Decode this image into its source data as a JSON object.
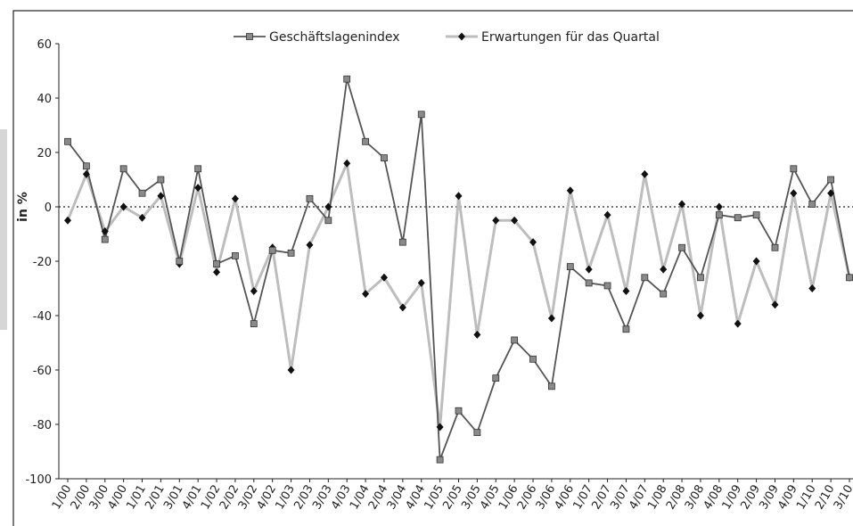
{
  "chart_data": {
    "type": "line",
    "y_label": "in %",
    "categories": [
      "1/00",
      "2/00",
      "3/00",
      "4/00",
      "1/01",
      "2/01",
      "3/01",
      "4/01",
      "1/02",
      "2/02",
      "3/02",
      "4/02",
      "1/03",
      "2/03",
      "3/03",
      "4/03",
      "1/04",
      "2/04",
      "3/04",
      "4/04",
      "1/05",
      "2/05",
      "3/05",
      "4/05",
      "1/06",
      "2/06",
      "3/06",
      "4/06",
      "1/07",
      "2/07",
      "3/07",
      "4/07",
      "1/08",
      "2/08",
      "3/08",
      "4/08",
      "1/09",
      "2/09",
      "3/09",
      "4/09",
      "1/10",
      "2/10",
      "3/10"
    ],
    "series": [
      {
        "name": "Geschäftslagenindex",
        "color": "#555555",
        "marker": "square",
        "marker_color": "#8a8a8a",
        "values": [
          24,
          15,
          -12,
          14,
          5,
          10,
          -20,
          14,
          -21,
          -18,
          -43,
          -16,
          -17,
          3,
          -5,
          47,
          24,
          18,
          -13,
          34,
          -93,
          -75,
          -83,
          -63,
          -49,
          -56,
          -66,
          -22,
          -28,
          -29,
          -45,
          -26,
          -32,
          -15,
          -26,
          -3,
          -4,
          -3,
          -15,
          14,
          1,
          10,
          -26
        ]
      },
      {
        "name": "Erwartungen für das Quartal",
        "color": "#bdbdbd",
        "marker": "diamond",
        "marker_color": "#111111",
        "values": [
          -5,
          12,
          -9,
          0,
          -4,
          4,
          -21,
          7,
          -24,
          3,
          -31,
          -15,
          -60,
          -14,
          0,
          16,
          -32,
          -26,
          -37,
          -28,
          -81,
          4,
          -47,
          -5,
          -5,
          -13,
          -41,
          6,
          -23,
          -3,
          -31,
          12,
          -23,
          1,
          -40,
          0,
          -43,
          -20,
          -36,
          5,
          -30,
          5,
          -26
        ]
      }
    ],
    "ylim": [
      -100,
      60
    ],
    "yticks": [
      -100,
      -80,
      -60,
      -40,
      -20,
      0,
      20,
      40,
      60
    ],
    "zero_line": true,
    "legend": "top"
  }
}
